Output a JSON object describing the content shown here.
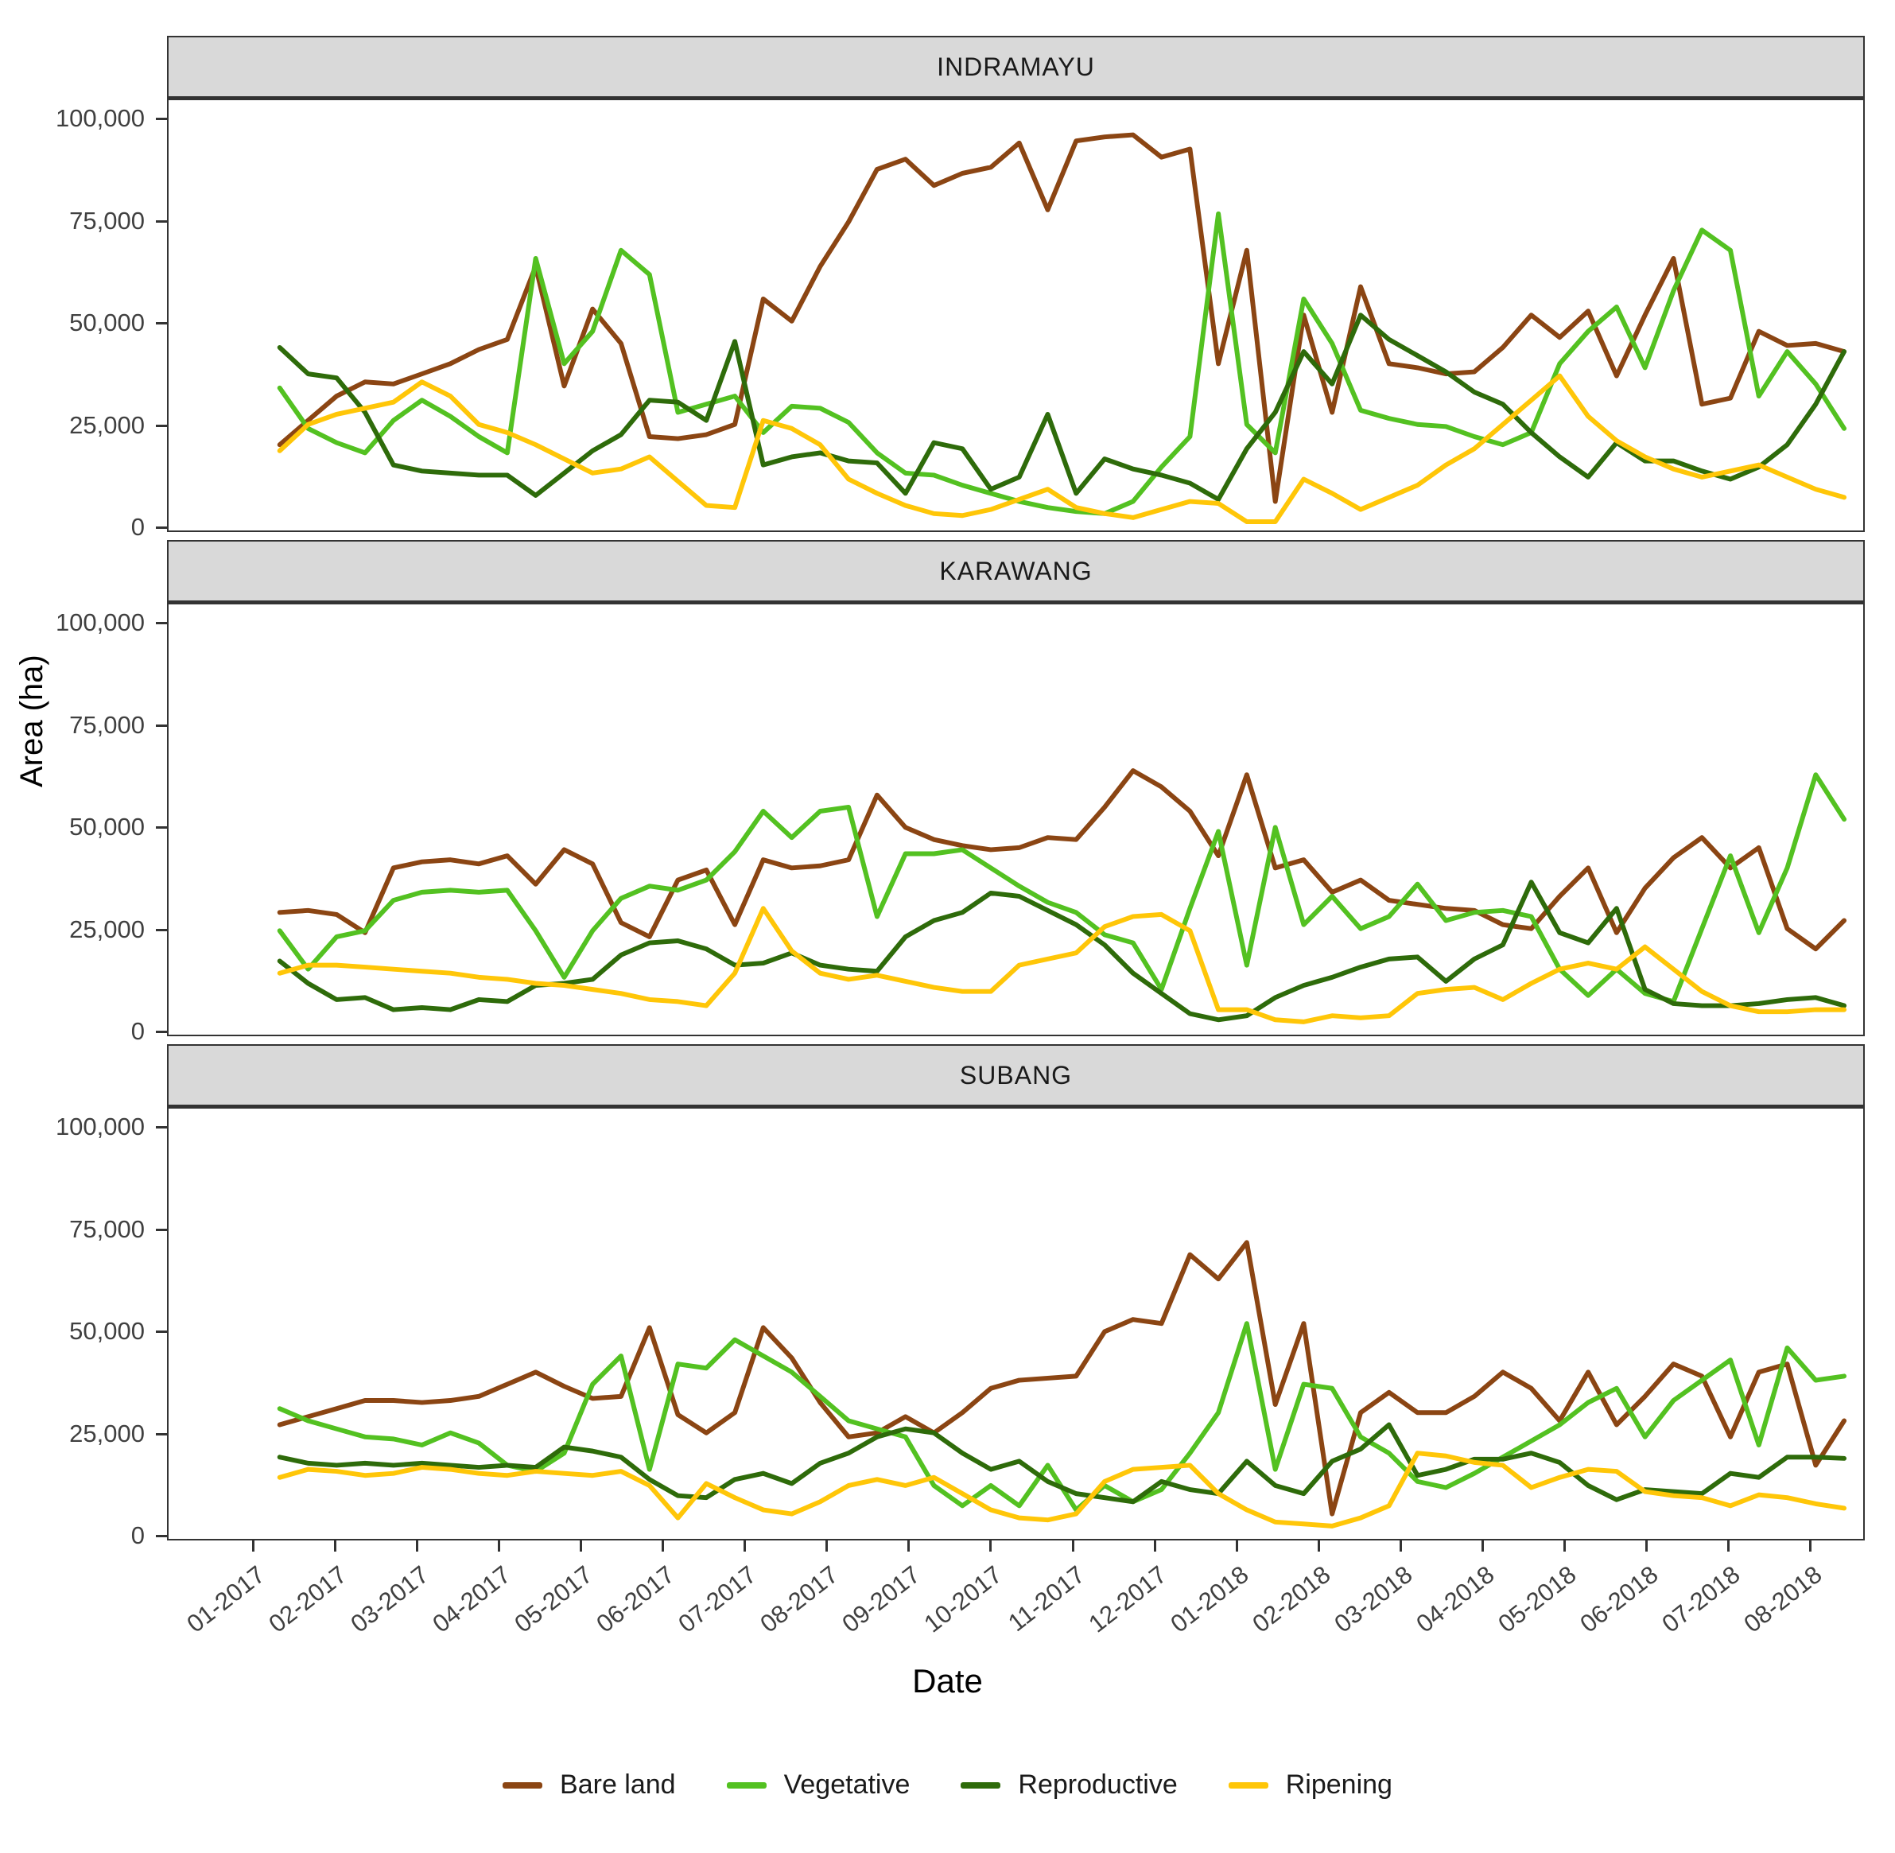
{
  "figure_title": "",
  "axes": {
    "y_title": "Area (ha)",
    "x_title": "Date",
    "y_tick_labels": [
      "100,000",
      "75,000",
      "50,000",
      "25,000",
      "0"
    ],
    "x_tick_labels": [
      "01-2017",
      "02-2017",
      "03-2017",
      "04-2017",
      "05-2017",
      "06-2017",
      "07-2017",
      "08-2017",
      "09-2017",
      "10-2017",
      "11-2017",
      "12-2017",
      "01-2018",
      "02-2018",
      "03-2018",
      "04-2018",
      "05-2018",
      "06-2018",
      "07-2018",
      "08-2018"
    ]
  },
  "legend": [
    {
      "label": "Bare land",
      "color": "#8B4513"
    },
    {
      "label": "Vegetative",
      "color": "#53C121"
    },
    {
      "label": "Reproductive",
      "color": "#2E6B0A"
    },
    {
      "label": "Ripening",
      "color": "#FFC608"
    }
  ],
  "chart_data": {
    "type": "line",
    "title": "Rice growth phase area time series by district",
    "xlabel": "Date",
    "ylabel": "Area (ha)",
    "ylim": [
      0,
      100000
    ],
    "grid": false,
    "legend_position": "bottom",
    "facets_layout": "rows",
    "x": [
      "2017-01-15",
      "2017-01-25",
      "2017-02-05",
      "2017-02-15",
      "2017-02-25",
      "2017-03-05",
      "2017-03-15",
      "2017-03-25",
      "2017-04-05",
      "2017-04-15",
      "2017-04-25",
      "2017-05-05",
      "2017-05-15",
      "2017-05-25",
      "2017-06-05",
      "2017-06-15",
      "2017-06-25",
      "2017-07-05",
      "2017-07-15",
      "2017-07-25",
      "2017-08-05",
      "2017-08-15",
      "2017-08-25",
      "2017-09-05",
      "2017-09-15",
      "2017-09-25",
      "2017-10-05",
      "2017-10-15",
      "2017-10-25",
      "2017-11-05",
      "2017-11-15",
      "2017-11-25",
      "2017-12-05",
      "2017-12-15",
      "2017-12-25",
      "2018-01-05",
      "2018-01-15",
      "2018-01-25",
      "2018-02-05",
      "2018-02-15",
      "2018-02-25",
      "2018-03-05",
      "2018-03-15",
      "2018-03-25",
      "2018-04-05",
      "2018-04-15",
      "2018-04-25",
      "2018-05-05",
      "2018-05-15",
      "2018-05-25",
      "2018-06-05",
      "2018-06-15",
      "2018-06-25",
      "2018-07-05",
      "2018-07-15",
      "2018-07-25"
    ],
    "facets": [
      {
        "title": "INDRAMAYU",
        "series": [
          {
            "name": "Bare land",
            "values": [
              20000,
              26000,
              32000,
              35500,
              35000,
              37500,
              40000,
              43500,
              46000,
              64000,
              34500,
              53500,
              45000,
              22000,
              21500,
              22500,
              25000,
              56000,
              50500,
              64000,
              75000,
              88000,
              90500,
              84000,
              87000,
              88500,
              94500,
              78000,
              95000,
              96000,
              96500,
              91000,
              93000,
              40000,
              68000,
              6000,
              52000,
              28000,
              59000,
              40000,
              39000,
              37500,
              38000,
              44000,
              52000,
              46500,
              53000,
              37000,
              52000,
              66000,
              30000,
              31500,
              48000,
              44500,
              45000,
              43000
            ]
          },
          {
            "name": "Vegetative",
            "values": [
              34000,
              24000,
              20500,
              18000,
              26000,
              31000,
              27000,
              22000,
              18000,
              66000,
              40000,
              48000,
              68000,
              62000,
              28000,
              30000,
              32000,
              23000,
              29500,
              29000,
              25500,
              18000,
              13000,
              12500,
              10000,
              8000,
              6000,
              4500,
              3500,
              3000,
              6000,
              14500,
              22000,
              77000,
              25000,
              18000,
              56000,
              45000,
              28500,
              26500,
              25000,
              24500,
              22000,
              20000,
              23000,
              40000,
              48000,
              54000,
              39000,
              58000,
              73000,
              68000,
              32000,
              43000,
              35000,
              24000
            ]
          },
          {
            "name": "Reproductive",
            "values": [
              44000,
              37500,
              36500,
              28000,
              15000,
              13500,
              13000,
              12500,
              12500,
              7500,
              13000,
              18500,
              22500,
              31000,
              30500,
              26000,
              45500,
              15000,
              17000,
              18000,
              16000,
              15500,
              8000,
              20500,
              19000,
              9000,
              12000,
              27500,
              8000,
              16500,
              14000,
              12500,
              10500,
              6500,
              19000,
              28000,
              43000,
              35000,
              52000,
              46000,
              42000,
              38000,
              33000,
              30000,
              23000,
              17000,
              12000,
              20500,
              16000,
              16000,
              13500,
              11500,
              14500,
              20000,
              30000,
              43000
            ]
          },
          {
            "name": "Ripening",
            "values": [
              18500,
              25000,
              27500,
              29000,
              30500,
              35500,
              32000,
              25000,
              23000,
              20000,
              16500,
              13000,
              14000,
              17000,
              11000,
              5000,
              4500,
              26000,
              24000,
              20000,
              11500,
              8000,
              5000,
              3000,
              2500,
              4000,
              6500,
              9000,
              4500,
              3000,
              2000,
              4000,
              6000,
              5500,
              1000,
              1000,
              11500,
              8000,
              4000,
              7000,
              10000,
              15000,
              19000,
              25000,
              31000,
              37000,
              27000,
              21000,
              17000,
              14000,
              12000,
              13500,
              15000,
              12000,
              9000,
              7000
            ]
          }
        ]
      },
      {
        "title": "KARAWANG",
        "series": [
          {
            "name": "Bare land",
            "values": [
              29000,
              29500,
              28500,
              24000,
              40000,
              41500,
              42000,
              41000,
              43000,
              36000,
              44500,
              41000,
              26500,
              23000,
              37000,
              39500,
              26000,
              42000,
              40000,
              40500,
              42000,
              58000,
              50000,
              47000,
              45500,
              44500,
              45000,
              47500,
              47000,
              55000,
              64000,
              60000,
              54000,
              43000,
              63000,
              40000,
              42000,
              34000,
              37000,
              32000,
              31000,
              30000,
              29500,
              26000,
              25000,
              33000,
              40000,
              24000,
              35000,
              42500,
              47500,
              40000,
              45000,
              25000,
              20000,
              27000
            ]
          },
          {
            "name": "Vegetative",
            "values": [
              24500,
              15000,
              23000,
              24500,
              32000,
              34000,
              34500,
              34000,
              34500,
              24500,
              13000,
              24500,
              32500,
              35500,
              34500,
              37000,
              44000,
              54000,
              47500,
              54000,
              55000,
              28000,
              43500,
              43500,
              44500,
              40000,
              35500,
              31500,
              29000,
              23500,
              21500,
              10000,
              30000,
              49000,
              16000,
              50000,
              26000,
              33000,
              25000,
              28000,
              36000,
              27000,
              29000,
              29500,
              28000,
              15000,
              8500,
              15000,
              9000,
              7000,
              25000,
              43000,
              24000,
              40000,
              63000,
              52000
            ]
          },
          {
            "name": "Reproductive",
            "values": [
              17000,
              11500,
              7500,
              8000,
              5000,
              5500,
              5000,
              7500,
              7000,
              11000,
              11500,
              12500,
              18500,
              21500,
              22000,
              20000,
              16000,
              16500,
              19000,
              16000,
              15000,
              14500,
              23000,
              27000,
              29000,
              33800,
              33000,
              29500,
              26000,
              21000,
              14000,
              9000,
              4000,
              2500,
              3500,
              8000,
              11000,
              13000,
              15500,
              17500,
              18000,
              12000,
              17500,
              21000,
              36500,
              24000,
              21500,
              30000,
              10000,
              6500,
              6000,
              6000,
              6500,
              7500,
              8000,
              6000
            ]
          },
          {
            "name": "Ripening",
            "values": [
              14000,
              16000,
              16000,
              15500,
              15000,
              14500,
              14000,
              13000,
              12500,
              11500,
              11000,
              10000,
              9000,
              7500,
              7000,
              6000,
              14000,
              30000,
              19500,
              14000,
              12500,
              13500,
              12000,
              10500,
              9500,
              9500,
              16000,
              17500,
              19000,
              25500,
              28000,
              28500,
              24500,
              5000,
              5000,
              2500,
              2000,
              3500,
              3000,
              3500,
              9000,
              10000,
              10500,
              7500,
              11500,
              15000,
              16500,
              15000,
              20500,
              15000,
              9500,
              6000,
              4500,
              4500,
              5000,
              5000
            ]
          }
        ]
      },
      {
        "title": "SUBANG",
        "series": [
          {
            "name": "Bare land",
            "values": [
              27000,
              29000,
              31000,
              33000,
              33000,
              32500,
              33000,
              34000,
              37000,
              40000,
              36500,
              33500,
              34000,
              51000,
              29500,
              25000,
              30000,
              51000,
              43500,
              32500,
              24000,
              25000,
              29000,
              25000,
              30000,
              36000,
              38000,
              38500,
              39000,
              50000,
              53000,
              52000,
              69000,
              63000,
              72000,
              32000,
              52000,
              5000,
              30000,
              35000,
              30000,
              30000,
              34000,
              40000,
              36000,
              28000,
              40000,
              27000,
              34000,
              42000,
              39000,
              24000,
              40000,
              42000,
              17000,
              28000
            ]
          },
          {
            "name": "Vegetative",
            "values": [
              31000,
              28000,
              26000,
              24000,
              23500,
              22000,
              25000,
              22500,
              17000,
              15500,
              20000,
              37000,
              44000,
              16000,
              42000,
              41000,
              48000,
              44000,
              40000,
              34000,
              28000,
              26000,
              24000,
              12000,
              7000,
              12000,
              7000,
              17000,
              6000,
              12000,
              8000,
              11000,
              20000,
              30000,
              52000,
              16000,
              37000,
              36000,
              24000,
              20000,
              13000,
              11500,
              15000,
              19000,
              23000,
              27000,
              32500,
              36000,
              24000,
              33000,
              38000,
              43000,
              22000,
              46000,
              38000,
              39000
            ]
          },
          {
            "name": "Reproductive",
            "values": [
              19000,
              17500,
              17000,
              17500,
              17000,
              17500,
              17000,
              16500,
              17000,
              16500,
              21500,
              20500,
              19000,
              13500,
              9500,
              9000,
              13500,
              15000,
              12500,
              17500,
              20000,
              24000,
              26000,
              25000,
              20000,
              16000,
              18000,
              13000,
              10000,
              9000,
              8000,
              13000,
              11000,
              10000,
              18000,
              12000,
              10000,
              18000,
              21000,
              27000,
              14500,
              16000,
              18500,
              18500,
              20000,
              17700,
              12000,
              8500,
              11000,
              10500,
              10000,
              15000,
              14000,
              19000,
              19000,
              18700
            ]
          },
          {
            "name": "Ripening",
            "values": [
              14000,
              16000,
              15500,
              14500,
              15000,
              16500,
              16000,
              15000,
              14500,
              15500,
              15000,
              14500,
              15500,
              12000,
              4000,
              12500,
              9000,
              6000,
              5000,
              8000,
              12000,
              13500,
              12000,
              14000,
              10000,
              6000,
              4000,
              3500,
              5000,
              13000,
              16000,
              16500,
              17000,
              10000,
              6000,
              3000,
              2500,
              2000,
              4000,
              7000,
              20000,
              19300,
              17700,
              17000,
              11500,
              14000,
              16000,
              15500,
              10500,
              9500,
              9000,
              7000,
              9700,
              9000,
              7500,
              6400
            ]
          }
        ]
      }
    ]
  },
  "style": {
    "strip_background": "#d9d9d9",
    "panel_border": "#333333",
    "tick_text_color": "#404040",
    "line_width": 6
  }
}
